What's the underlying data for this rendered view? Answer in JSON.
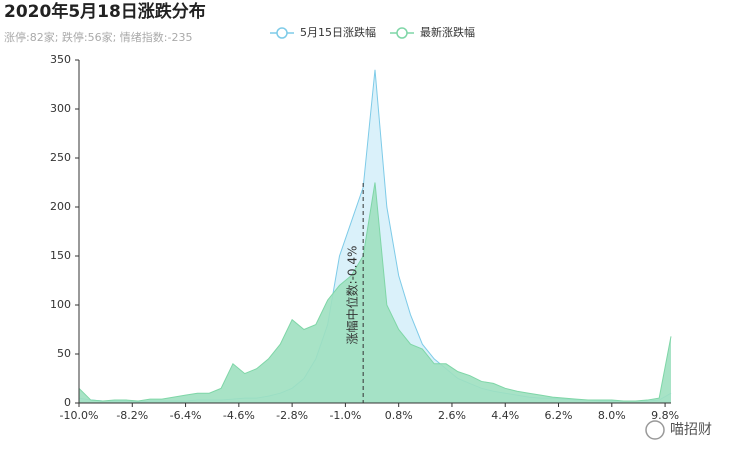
{
  "chart_data": {
    "type": "area",
    "title": "2020年5月18日涨跌分布",
    "subtitle": "涨停:82家; 跌停:56家; 情绪指数:-235",
    "watermark": "喵招财",
    "x": [
      -10,
      -9.6,
      -9.2,
      -8.8,
      -8.4,
      -8,
      -7.6,
      -7.2,
      -6.8,
      -6.4,
      -6,
      -5.6,
      -5.2,
      -4.8,
      -4.4,
      -4,
      -3.6,
      -3.2,
      -2.8,
      -2.4,
      -2,
      -1.6,
      -1.2,
      -0.8,
      -0.4,
      0,
      0.4,
      0.8,
      1.2,
      1.6,
      2,
      2.4,
      2.8,
      3.2,
      3.6,
      4,
      4.4,
      4.8,
      5.2,
      5.6,
      6,
      6.4,
      6.8,
      7.2,
      7.6,
      8,
      8.4,
      8.8,
      9.2,
      9.6,
      10
    ],
    "series": [
      {
        "name": "5月15日涨跌幅",
        "color": "#7ecbe8",
        "fill": "#d6f0f9",
        "values": [
          5,
          3,
          2,
          2,
          2,
          1,
          2,
          2,
          2,
          2,
          3,
          3,
          3,
          4,
          5,
          5,
          7,
          10,
          15,
          25,
          45,
          80,
          150,
          185,
          220,
          340,
          200,
          130,
          90,
          60,
          45,
          35,
          25,
          20,
          15,
          12,
          10,
          8,
          6,
          5,
          5,
          4,
          3,
          3,
          2,
          2,
          2,
          2,
          2,
          3,
          10
        ]
      },
      {
        "name": "最新涨跌幅",
        "color": "#7fd6a7",
        "fill": "#9fe0c0",
        "values": [
          15,
          3,
          2,
          3,
          3,
          2,
          4,
          4,
          6,
          8,
          10,
          10,
          15,
          40,
          30,
          35,
          45,
          60,
          85,
          75,
          80,
          105,
          120,
          130,
          150,
          225,
          100,
          75,
          60,
          55,
          40,
          40,
          32,
          28,
          22,
          20,
          15,
          12,
          10,
          8,
          6,
          5,
          4,
          3,
          3,
          3,
          2,
          2,
          3,
          5,
          68
        ]
      }
    ],
    "markline": {
      "value": -0.4,
      "label": "涨幅中位数:-0.4%"
    },
    "xlim": [
      -10,
      10
    ],
    "xticks": [
      {
        "value": -10,
        "label": "-10.0%"
      },
      {
        "value": -8.2,
        "label": "-8.2%"
      },
      {
        "value": -6.4,
        "label": "-6.4%"
      },
      {
        "value": -4.6,
        "label": "-4.6%"
      },
      {
        "value": -2.8,
        "label": "-2.8%"
      },
      {
        "value": -1,
        "label": "-1.0%"
      },
      {
        "value": 0.8,
        "label": "0.8%"
      },
      {
        "value": 2.6,
        "label": "2.6%"
      },
      {
        "value": 4.4,
        "label": "4.4%"
      },
      {
        "value": 6.2,
        "label": "6.2%"
      },
      {
        "value": 8,
        "label": "8.0%"
      },
      {
        "value": 9.8,
        "label": "9.8%"
      }
    ],
    "ylim": [
      0,
      350
    ],
    "yticks": [
      0,
      50,
      100,
      150,
      200,
      250,
      300,
      350
    ]
  }
}
